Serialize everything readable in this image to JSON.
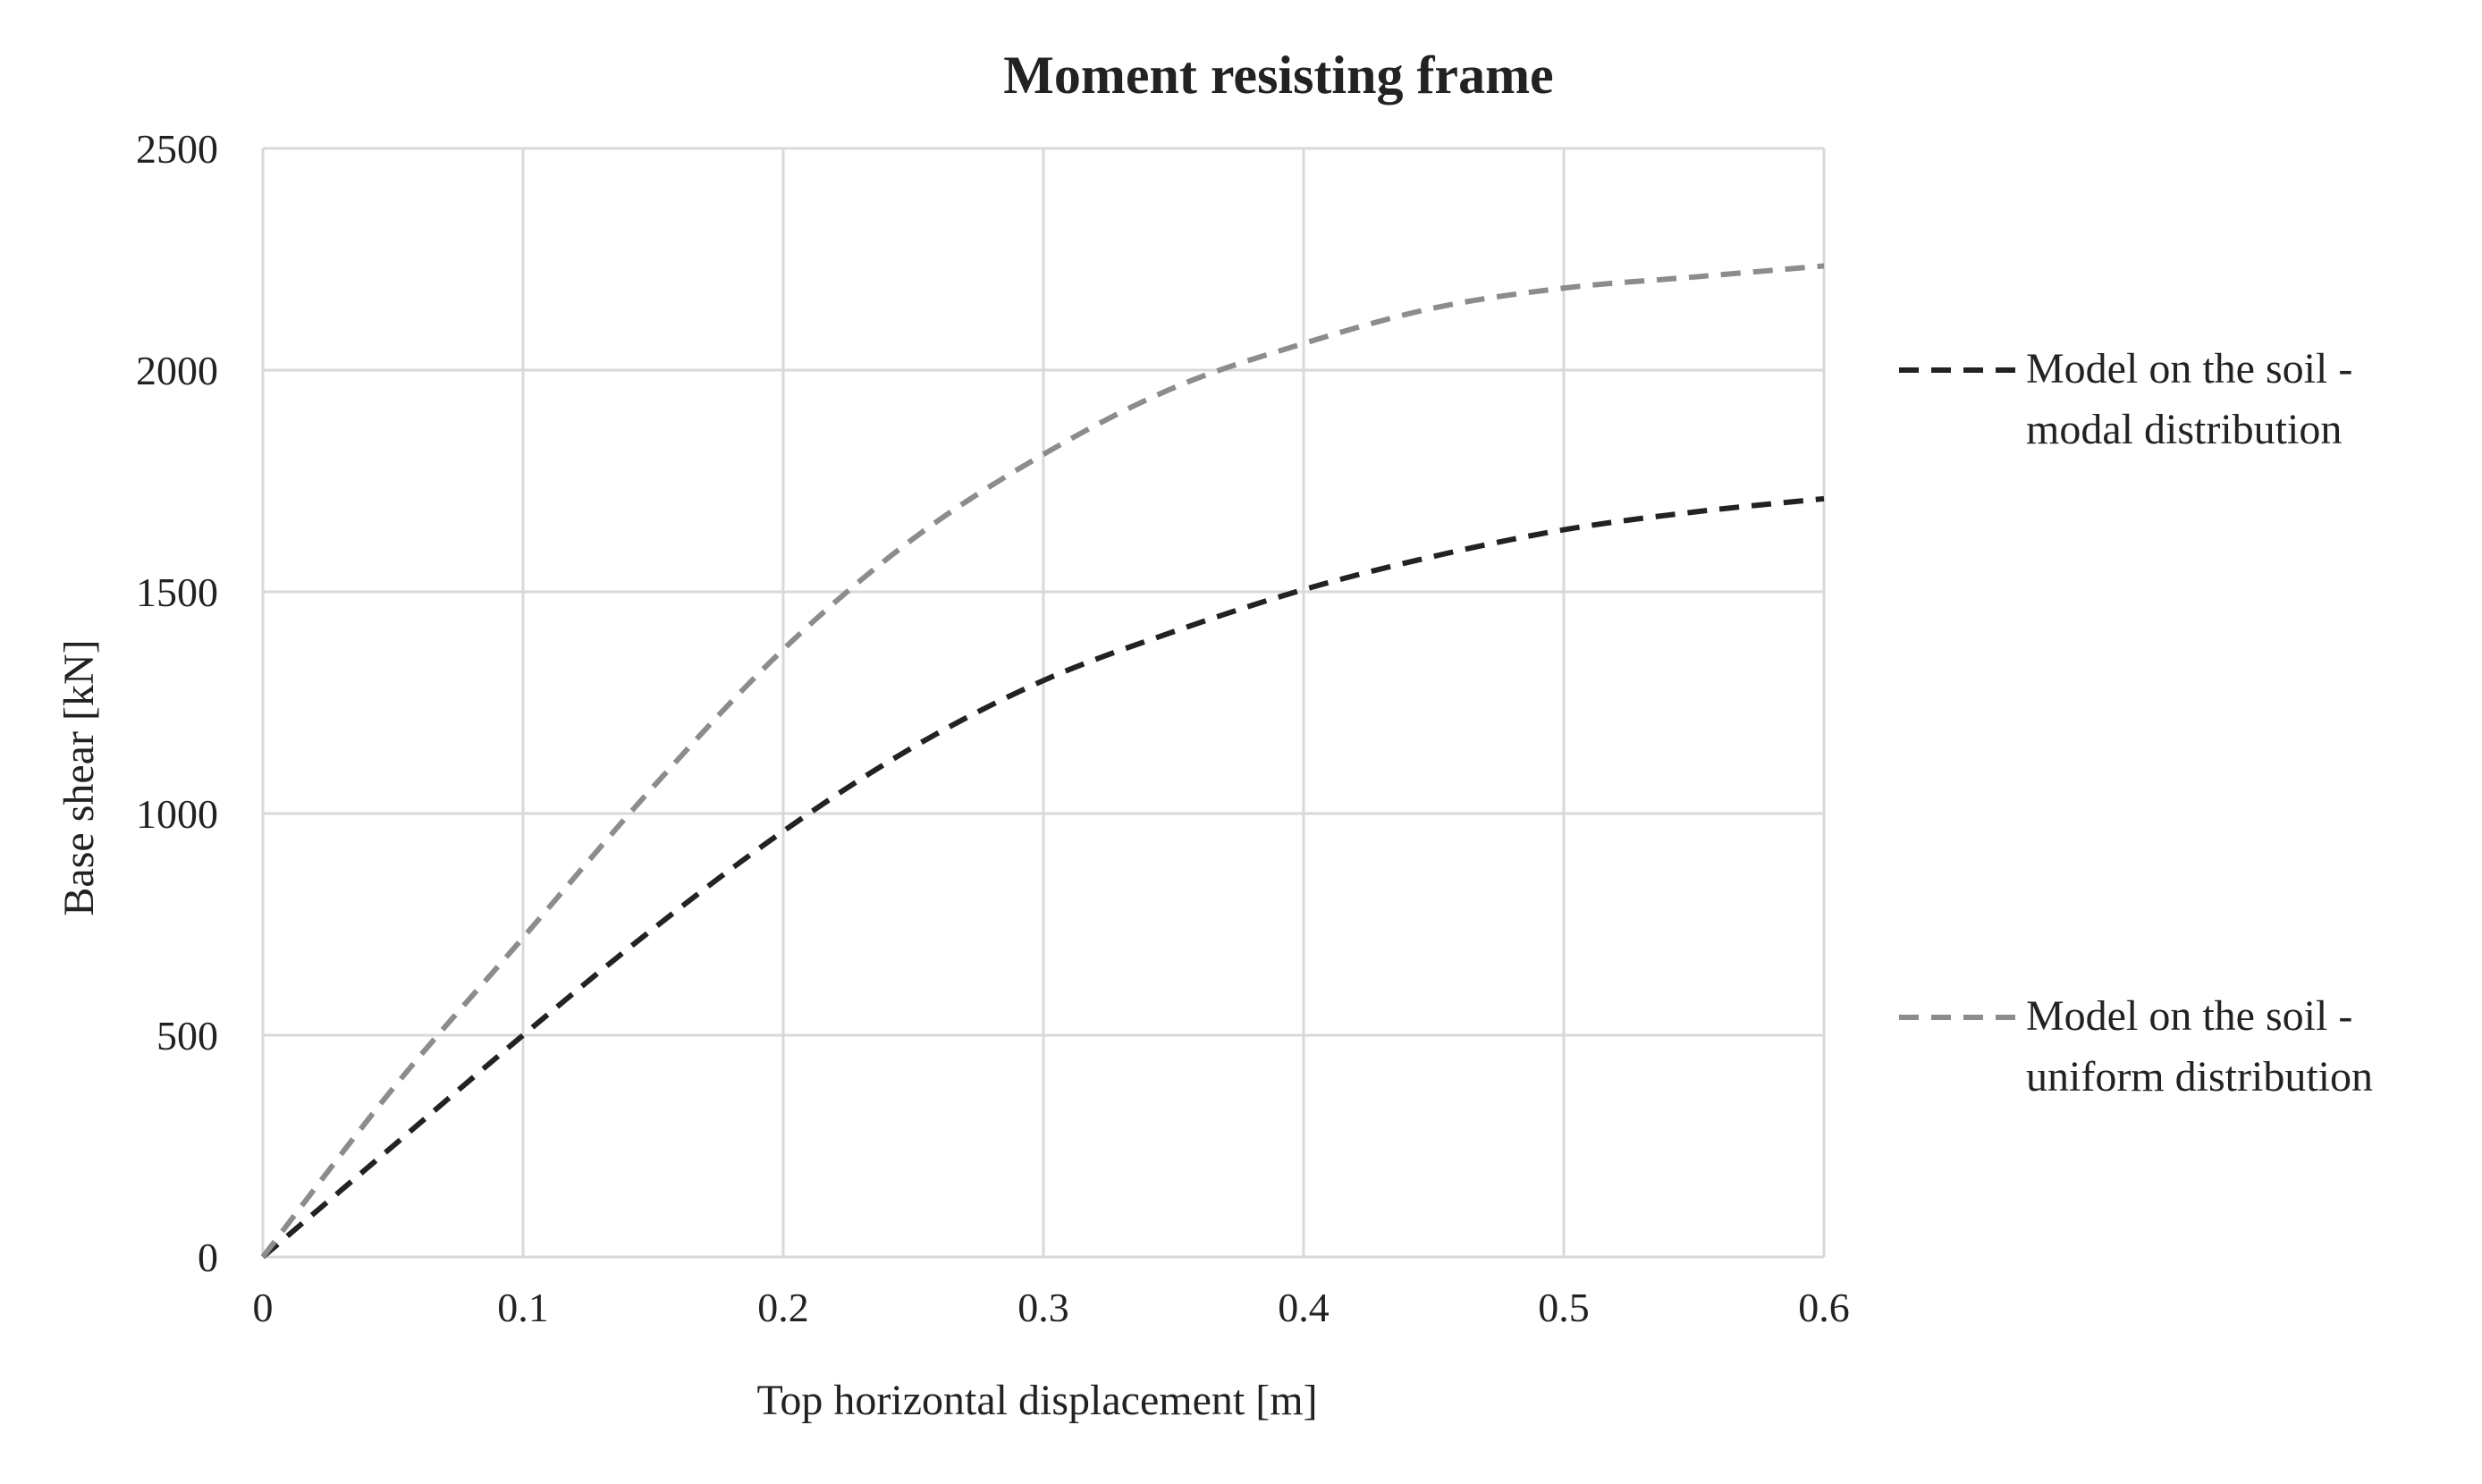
{
  "chart_data": {
    "type": "line",
    "title": "Moment resisting frame",
    "xlabel": "Top horizontal displacement [m]",
    "ylabel": "Base shear [kN]",
    "xlim": [
      0,
      0.6
    ],
    "ylim": [
      0,
      2500
    ],
    "x_ticks": [
      "0",
      "0.1",
      "0.2",
      "0.3",
      "0.4",
      "0.5",
      "0.6"
    ],
    "y_ticks": [
      "0",
      "500",
      "1000",
      "1500",
      "2000",
      "2500"
    ],
    "grid": true,
    "legend_position": "right",
    "series": [
      {
        "name_lines": [
          "Model on the soil -",
          "modal distribution"
        ],
        "color": "#222222",
        "dash": "dashed",
        "x": [
          0,
          0.05,
          0.1,
          0.15,
          0.2,
          0.25,
          0.3,
          0.35,
          0.4,
          0.45,
          0.5,
          0.55,
          0.6
        ],
        "y": [
          0,
          250,
          500,
          740,
          960,
          1150,
          1300,
          1410,
          1505,
          1580,
          1640,
          1680,
          1710
        ]
      },
      {
        "name_lines": [
          "Model on the soil -",
          "uniform distribution"
        ],
        "color": "#8c8c8c",
        "dash": "dashed",
        "x": [
          0,
          0.05,
          0.1,
          0.15,
          0.2,
          0.25,
          0.3,
          0.35,
          0.4,
          0.45,
          0.5,
          0.55,
          0.6
        ],
        "y": [
          0,
          380,
          720,
          1060,
          1370,
          1620,
          1810,
          1960,
          2060,
          2140,
          2185,
          2210,
          2235
        ]
      }
    ]
  }
}
